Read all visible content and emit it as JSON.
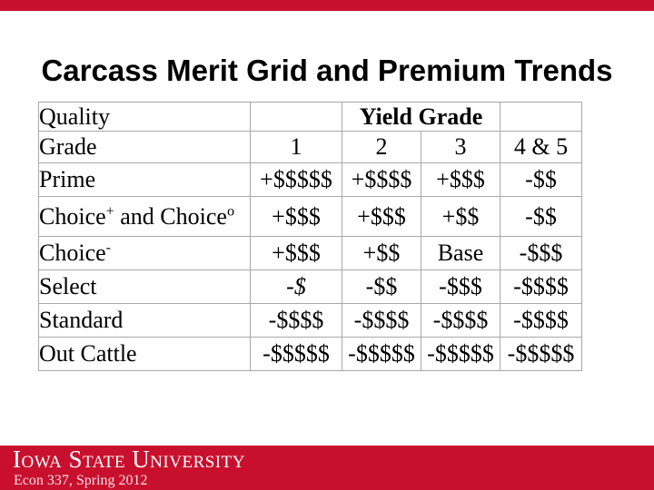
{
  "slide": {
    "title": "Carcass Merit Grid and Premium Trends"
  },
  "table": {
    "corner_label_line1": "Quality",
    "corner_label_line2": "Grade",
    "yield_grade_header": "Yield Grade",
    "yield_columns": [
      "1",
      "2",
      "3",
      "4 & 5"
    ],
    "rows": [
      {
        "label": [
          {
            "t": "Prime"
          }
        ],
        "cells": [
          {
            "t": "+$$$$$"
          },
          {
            "t": "+$$$$"
          },
          {
            "t": "+$$$"
          },
          {
            "t": "-$$"
          }
        ]
      },
      {
        "label": [
          {
            "t": "Choice"
          },
          {
            "t": "+",
            "sup": true
          },
          {
            "t": " and Choice"
          },
          {
            "t": "o",
            "sup": true
          }
        ],
        "cells": [
          {
            "t": "+$$$"
          },
          {
            "t": "+$$$"
          },
          {
            "t": "+$$"
          },
          {
            "t": "-$$"
          }
        ]
      },
      {
        "label": [
          {
            "t": "Choice"
          },
          {
            "t": "-",
            "sup": true
          }
        ],
        "cells": [
          {
            "t": "+$$$"
          },
          {
            "t": "+$$"
          },
          {
            "t": "Base"
          },
          {
            "t": "-$$$"
          }
        ]
      },
      {
        "label": [
          {
            "t": "Select"
          }
        ],
        "cells": [
          {
            "t": "-$",
            "italic": true
          },
          {
            "t": "-$$"
          },
          {
            "t": "-$$$"
          },
          {
            "t": "-$$$$"
          }
        ]
      },
      {
        "label": [
          {
            "t": "Standard"
          }
        ],
        "cells": [
          {
            "t": "-$$$$"
          },
          {
            "t": "-$$$$"
          },
          {
            "t": "-$$$$"
          },
          {
            "t": "-$$$$"
          }
        ]
      },
      {
        "label": [
          {
            "t": "Out Cattle"
          }
        ],
        "cells": [
          {
            "t": "-$$$$$"
          },
          {
            "t": "-$$$$$"
          },
          {
            "t": "-$$$$$"
          },
          {
            "t": "-$$$$$"
          }
        ]
      }
    ]
  },
  "footer": {
    "university": "Iowa State University",
    "course": "Econ 337, Spring 2012"
  },
  "colors": {
    "cardinal": "#C8102E",
    "grid_line": "#a8a8a8",
    "heavy_rule": "#000000"
  }
}
